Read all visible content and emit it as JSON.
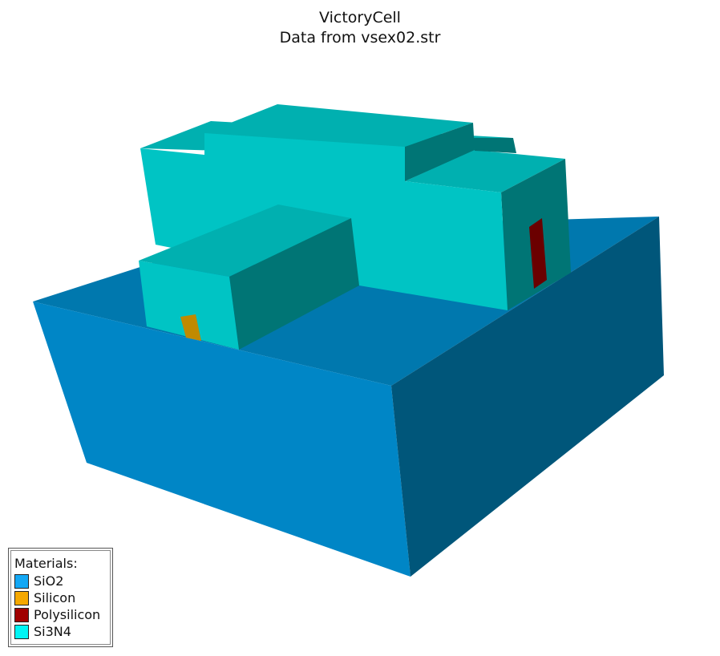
{
  "title": "VictoryCell",
  "subtitle": "Data from vsex02.str",
  "legend": {
    "title": "Materials:",
    "items": [
      {
        "label": "SiO2",
        "color": "#13a8f5"
      },
      {
        "label": "Silicon",
        "color": "#f5a800"
      },
      {
        "label": "Polysilicon",
        "color": "#a00000"
      },
      {
        "label": "Si3N4",
        "color": "#00f5f5"
      }
    ]
  },
  "colors": {
    "oxide_front": "#0086c6",
    "oxide_top": "#0078ae",
    "oxide_side": "#00567a",
    "nitride_front": "#00c4c4",
    "nitride_top": "#00b0b0",
    "nitride_side": "#007575",
    "silicon": "#c08a00",
    "polysilicon": "#6b0000"
  }
}
